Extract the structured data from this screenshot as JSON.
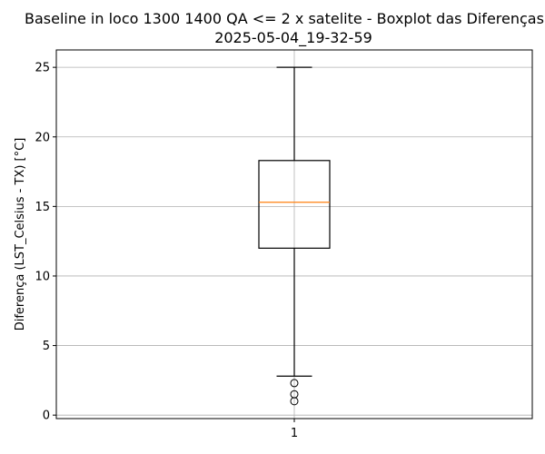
{
  "chart_data": {
    "type": "boxplot",
    "title": "Baseline in loco 1300 1400 QA <= 2 x satelite - Boxplot das Diferenças",
    "subtitle": "2025-05-04_19-32-59",
    "xlabel": "",
    "ylabel": "Diferença (LST_Celsius - TX) [°C]",
    "categories": [
      "1"
    ],
    "ylim": [
      -0.25,
      26.25
    ],
    "yticks": [
      0,
      5,
      10,
      15,
      20,
      25
    ],
    "ytick_labels": [
      "0",
      "5",
      "10",
      "15",
      "20",
      "25"
    ],
    "grid": true,
    "boxes": [
      {
        "category": "1",
        "whisker_low": 2.8,
        "q1": 12.0,
        "median": 15.3,
        "q3": 18.3,
        "whisker_high": 25.0,
        "outliers": [
          2.3,
          1.5,
          1.0
        ]
      }
    ],
    "colors": {
      "box": "#000000",
      "median": "#ff7f0e",
      "grid": "#b0b0b0"
    }
  }
}
